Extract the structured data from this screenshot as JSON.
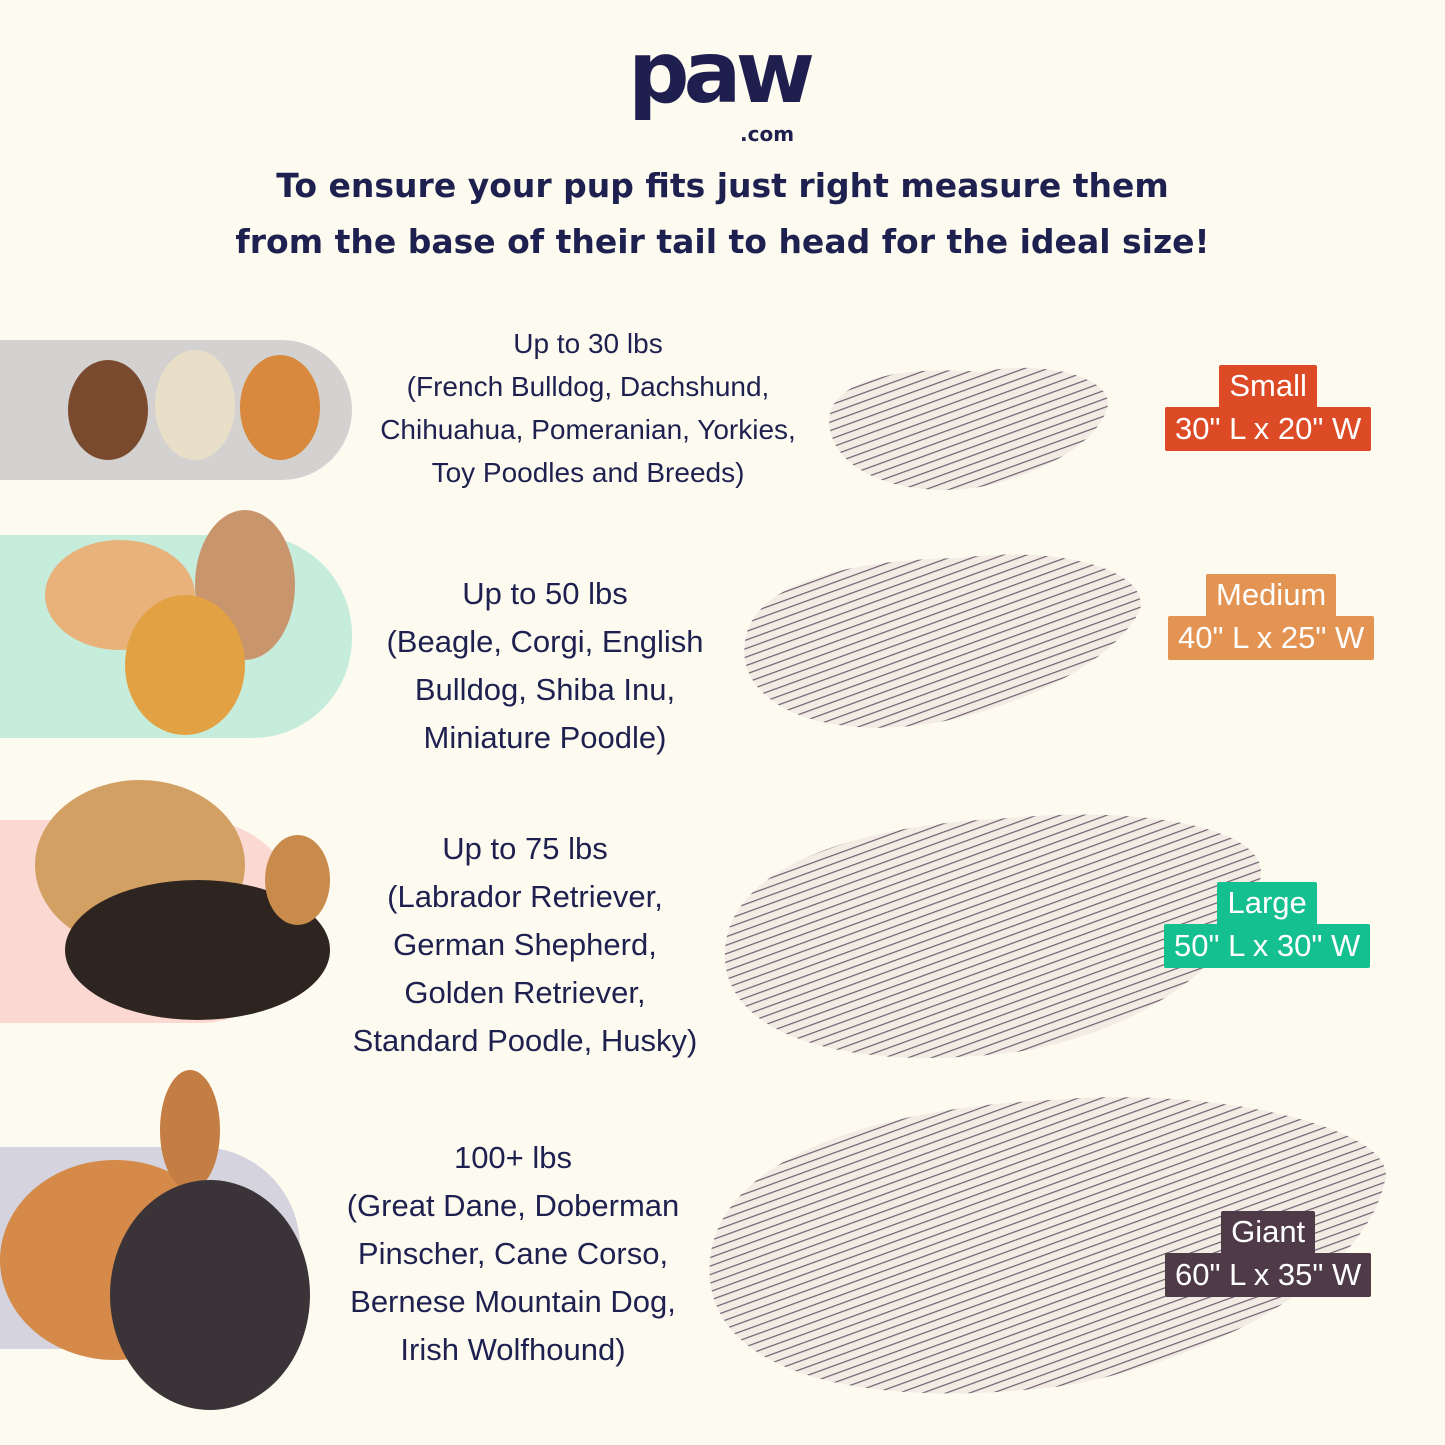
{
  "brand": {
    "logo_main": "paw",
    "logo_suffix": ".com",
    "color": "#1e1f4e"
  },
  "headline": [
    "To ensure your pup fits just right measure them",
    "from the base of their tail to head for the ideal size!"
  ],
  "sizes": [
    {
      "weight": "Up to 30 lbs",
      "breeds": [
        "(French Bulldog, Dachshund,",
        "Chihuahua, Pomeranian, Yorkies,",
        "Toy Poodles and Breeds)"
      ],
      "size": "Small",
      "dimensions": "30\" L x 20\" W",
      "label_color": "#dd4a26",
      "band_color": "#d3d2d1"
    },
    {
      "weight": "Up to 50 lbs",
      "breeds": [
        "(Beagle, Corgi, English",
        "Bulldog, Shiba Inu,",
        "Miniature Poodle)"
      ],
      "size": "Medium",
      "dimensions": "40\" L x 25\" W",
      "label_color": "#e39352",
      "band_color": "#c6ecdc"
    },
    {
      "weight": "Up to 75 lbs",
      "breeds": [
        "(Labrador Retriever,",
        "German Shepherd,",
        "Golden Retriever,",
        "Standard Poodle, Husky)"
      ],
      "size": "Large",
      "dimensions": "50\" L x 30\" W",
      "label_color": "#14c08f",
      "band_color": "#fbd9d2"
    },
    {
      "weight": "100+ lbs",
      "breeds": [
        "(Great Dane, Doberman",
        "Pinscher, Cane Corso,",
        "Bernese Mountain Dog,",
        "Irish Wolfhound)"
      ],
      "size": "Giant",
      "dimensions": "60\" L x 35\" W",
      "label_color": "#4f3b47",
      "band_color": "#d4d3de"
    }
  ]
}
